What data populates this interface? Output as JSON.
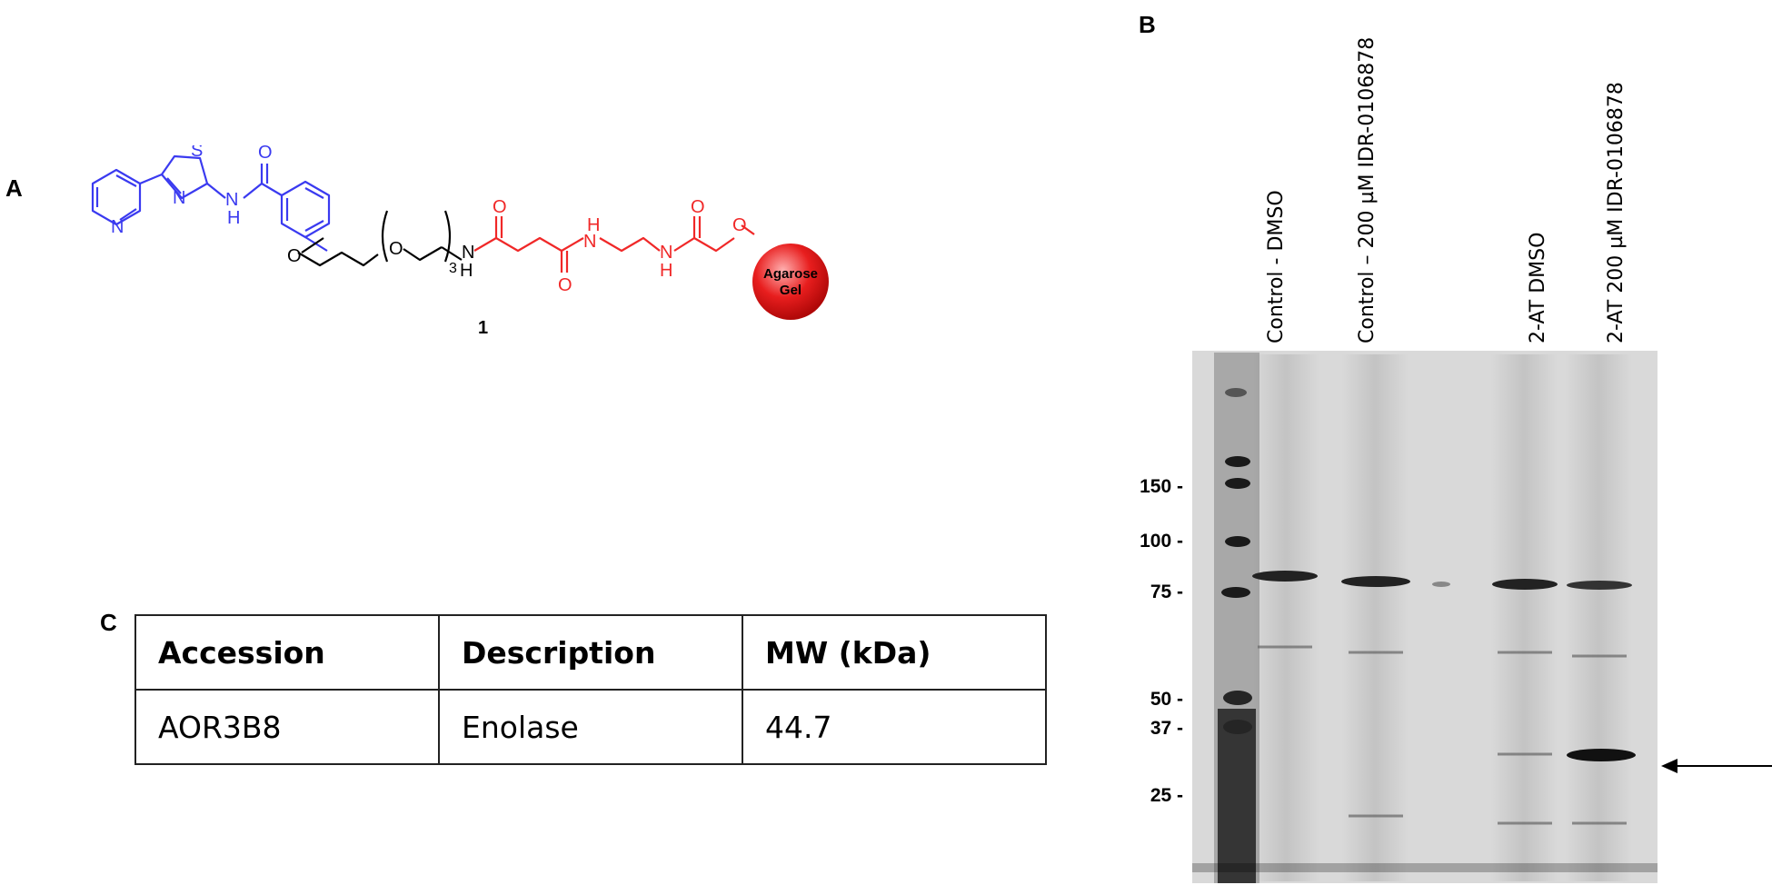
{
  "panels": {
    "a": "A",
    "b": "B",
    "c": "C"
  },
  "compound": {
    "number": "1",
    "atoms": {
      "n": "N",
      "s": "S",
      "o": "O",
      "h": "H",
      "nh": "NH"
    },
    "repeat_subscript": "3",
    "bead_label_line1": "Agarose",
    "bead_label_line2": "Gel"
  },
  "colors": {
    "ligand": "#3a3af0",
    "linker": "#f02828",
    "bead": "#e81e1e"
  },
  "table": {
    "headers": [
      "Accession",
      "Description",
      "MW (kDa)"
    ],
    "rows": [
      [
        "AOR3B8",
        "Enolase",
        "44.7"
      ]
    ]
  },
  "gel": {
    "lanes": [
      "Control - DMSO",
      "Control – 200 µM IDR-0106878",
      "2-AT DMSO",
      "2-AT 200 µM IDR-0106878"
    ],
    "mw_markers": [
      "150 -",
      "100 -",
      "75 -",
      "50 -",
      "37 -",
      "25 -"
    ],
    "arrow": "arrow-right-icon"
  }
}
